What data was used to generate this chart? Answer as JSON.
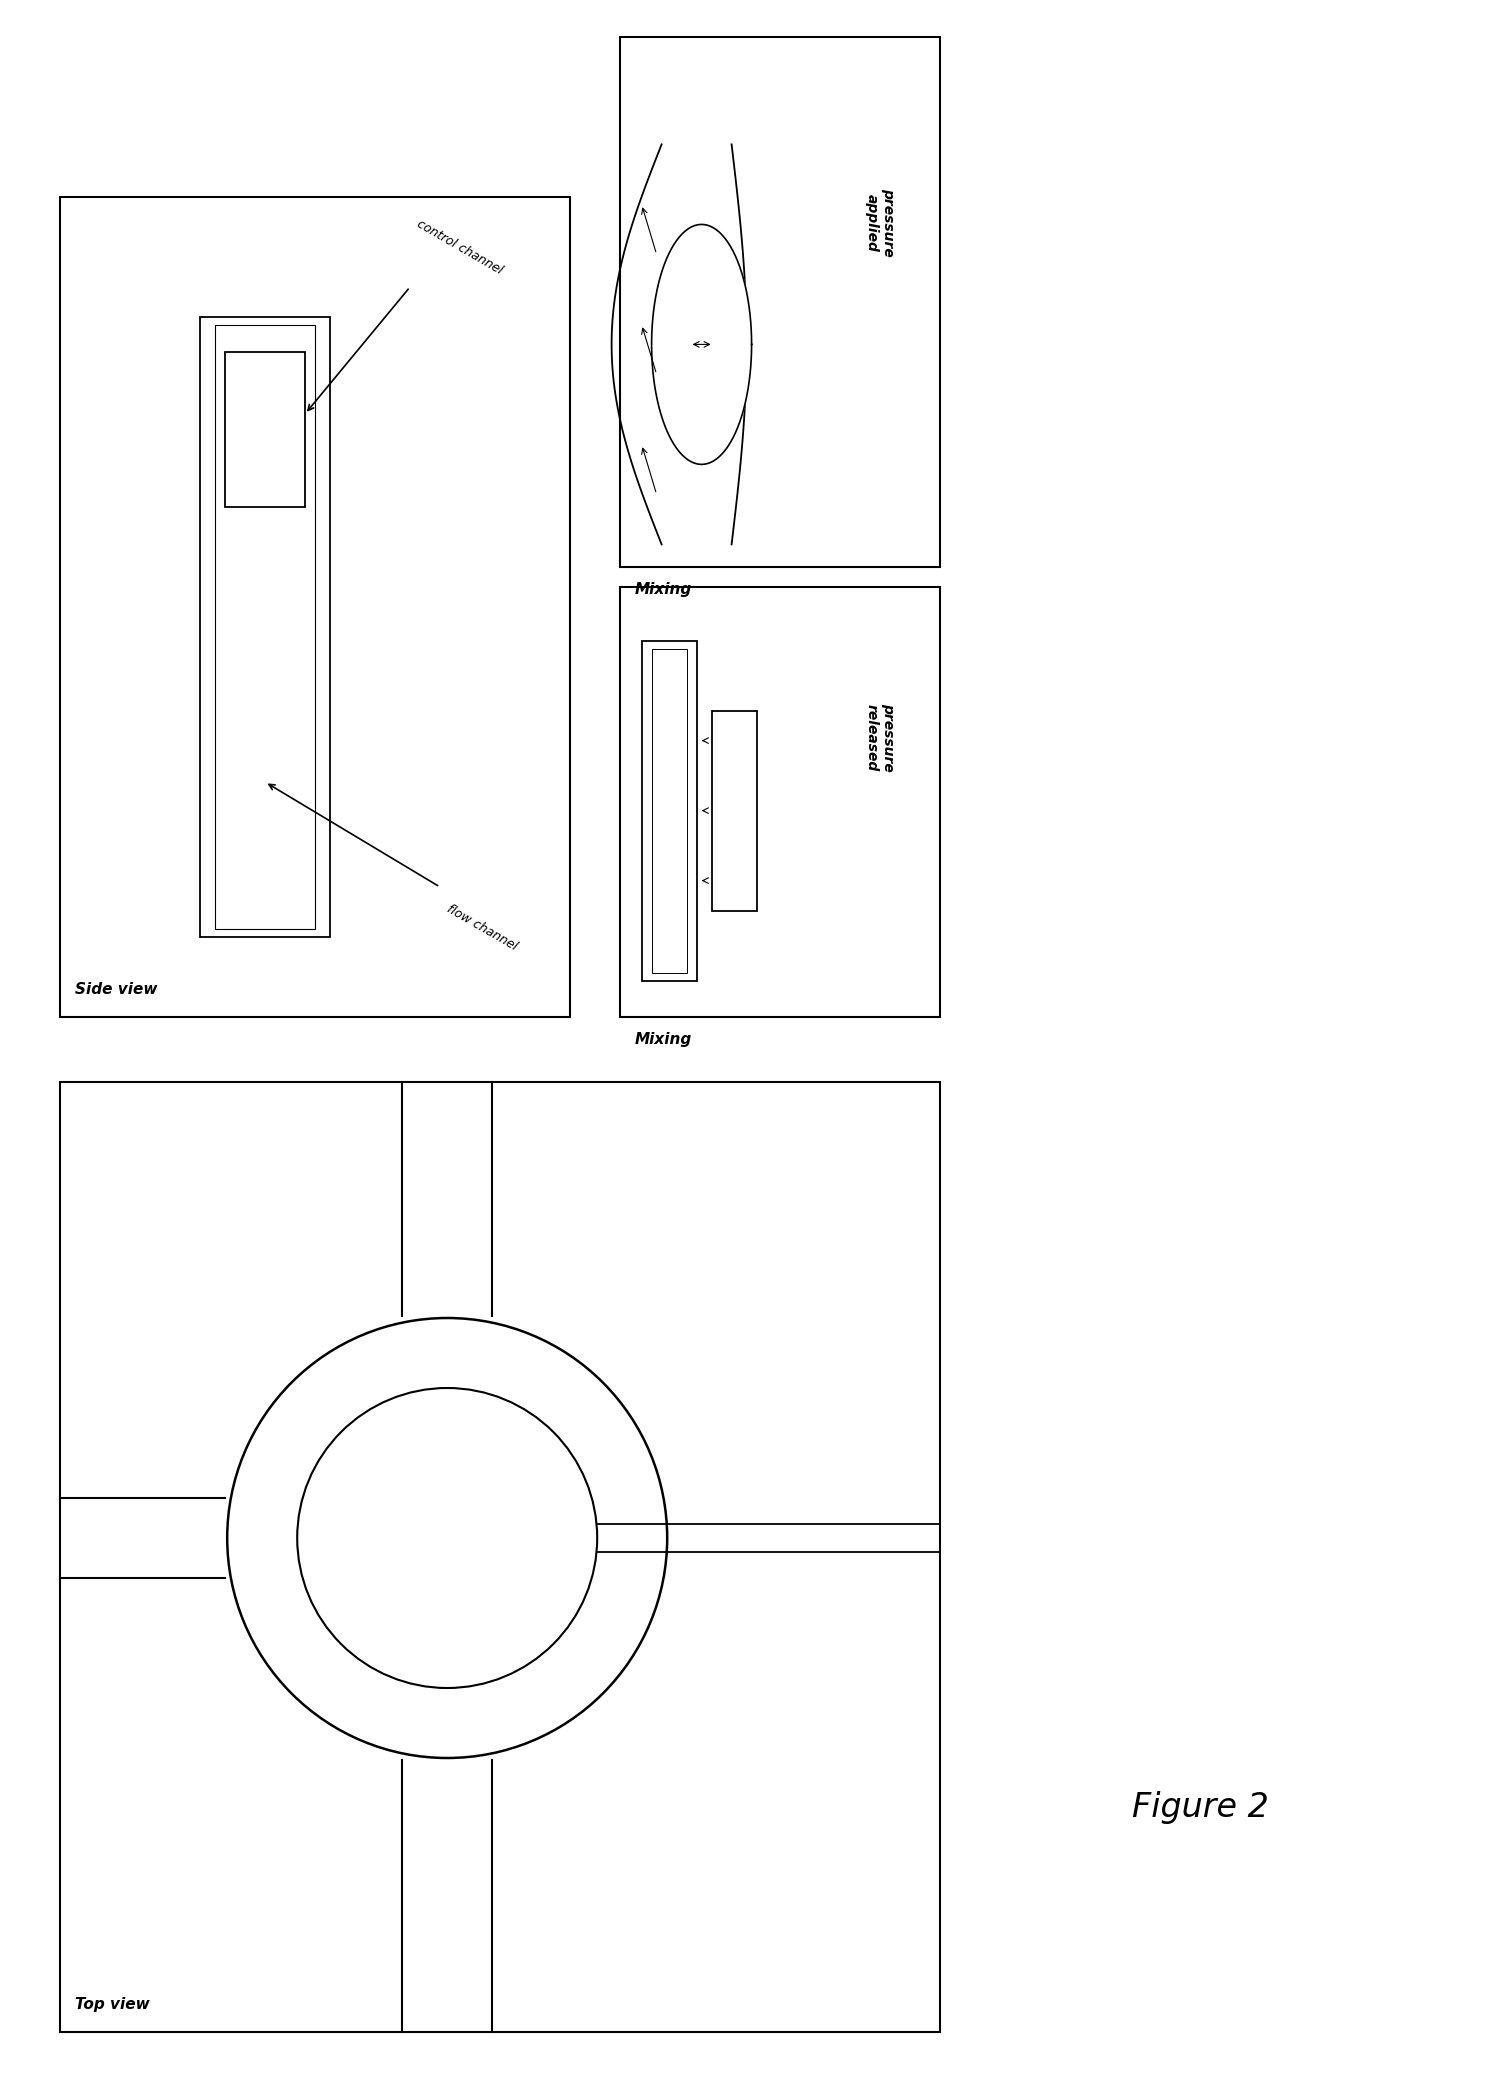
{
  "bg_color": "#ffffff",
  "fig_label": "Figure 2",
  "fig_label_fontsize": 24,
  "panel_edge_color": "#000000",
  "panel_lw": 1.5,
  "side_view_label": "Side view",
  "top_view_label": "Top view",
  "pressure_applied_label": "pressure\napplied",
  "pressure_released_label": "pressure\nreleased",
  "mixing_label": "Mixing",
  "control_channel_label": "control channel",
  "flow_channel_label": "flow channel",
  "font_size_labels": 11,
  "font_size_small": 9,
  "font_size_mixing": 11
}
